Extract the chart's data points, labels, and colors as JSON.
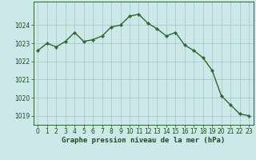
{
  "x": [
    0,
    1,
    2,
    3,
    4,
    5,
    6,
    7,
    8,
    9,
    10,
    11,
    12,
    13,
    14,
    15,
    16,
    17,
    18,
    19,
    20,
    21,
    22,
    23
  ],
  "y": [
    1022.6,
    1023.0,
    1022.8,
    1023.1,
    1023.6,
    1023.1,
    1023.2,
    1023.4,
    1023.9,
    1024.0,
    1024.5,
    1024.6,
    1024.1,
    1023.8,
    1023.4,
    1023.6,
    1022.9,
    1022.6,
    1022.2,
    1021.5,
    1020.1,
    1019.6,
    1019.1,
    1019.0
  ],
  "line_color": "#2d6a2d",
  "marker": "D",
  "marker_size": 2.2,
  "bg_color": "#cce8e8",
  "grid_color": "#aacccc",
  "xlabel": "Graphe pression niveau de la mer (hPa)",
  "xlabel_color": "#1a4d1a",
  "tick_color": "#1a4d1a",
  "ylim": [
    1018.5,
    1025.3
  ],
  "yticks": [
    1019,
    1020,
    1021,
    1022,
    1023,
    1024
  ],
  "line_width": 1.0,
  "tick_fontsize": 5.5,
  "xlabel_fontsize": 6.5
}
